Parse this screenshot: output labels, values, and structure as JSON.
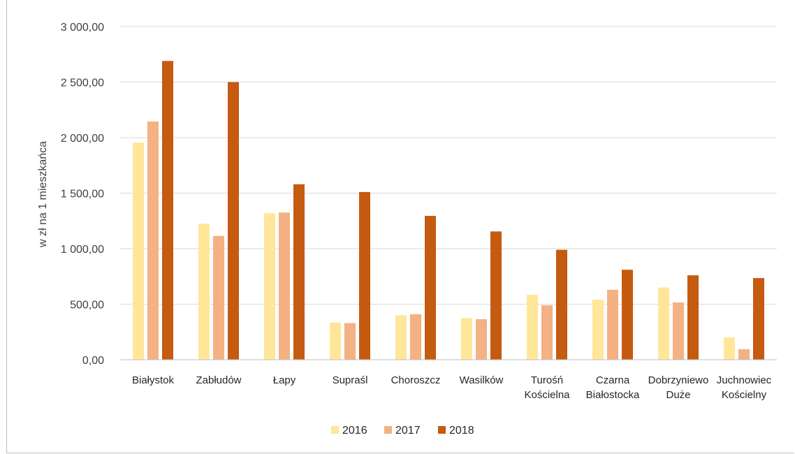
{
  "chart_data": {
    "type": "bar",
    "ylabel": "w zł na 1 mieszkańca",
    "ylim": [
      0,
      3000
    ],
    "ytick_labels": [
      "0,00",
      "500,00",
      "1 000,00",
      "1 500,00",
      "2 000,00",
      "2 500,00",
      "3 000,00"
    ],
    "categories": [
      [
        "Białystok"
      ],
      [
        "Zabłudów"
      ],
      [
        "Łapy"
      ],
      [
        "Supraśl"
      ],
      [
        "Choroszcz"
      ],
      [
        "Wasilków"
      ],
      [
        "Turośń",
        "Kościelna"
      ],
      [
        "Czarna",
        "Białostocka"
      ],
      [
        "Dobrzyniewo",
        "Duże"
      ],
      [
        "Juchnowiec",
        "Kościelny"
      ]
    ],
    "series": [
      {
        "name": "2016",
        "color": "#ffe699",
        "values": [
          1955,
          1225,
          1320,
          335,
          400,
          375,
          585,
          540,
          650,
          200
        ]
      },
      {
        "name": "2017",
        "color": "#f4b183",
        "values": [
          2145,
          1115,
          1325,
          330,
          410,
          365,
          490,
          630,
          515,
          95
        ]
      },
      {
        "name": "2018",
        "color": "#c55a11",
        "values": [
          2690,
          2500,
          1580,
          1510,
          1295,
          1155,
          990,
          810,
          760,
          735
        ]
      }
    ],
    "grid": true,
    "legend_position": "bottom"
  }
}
